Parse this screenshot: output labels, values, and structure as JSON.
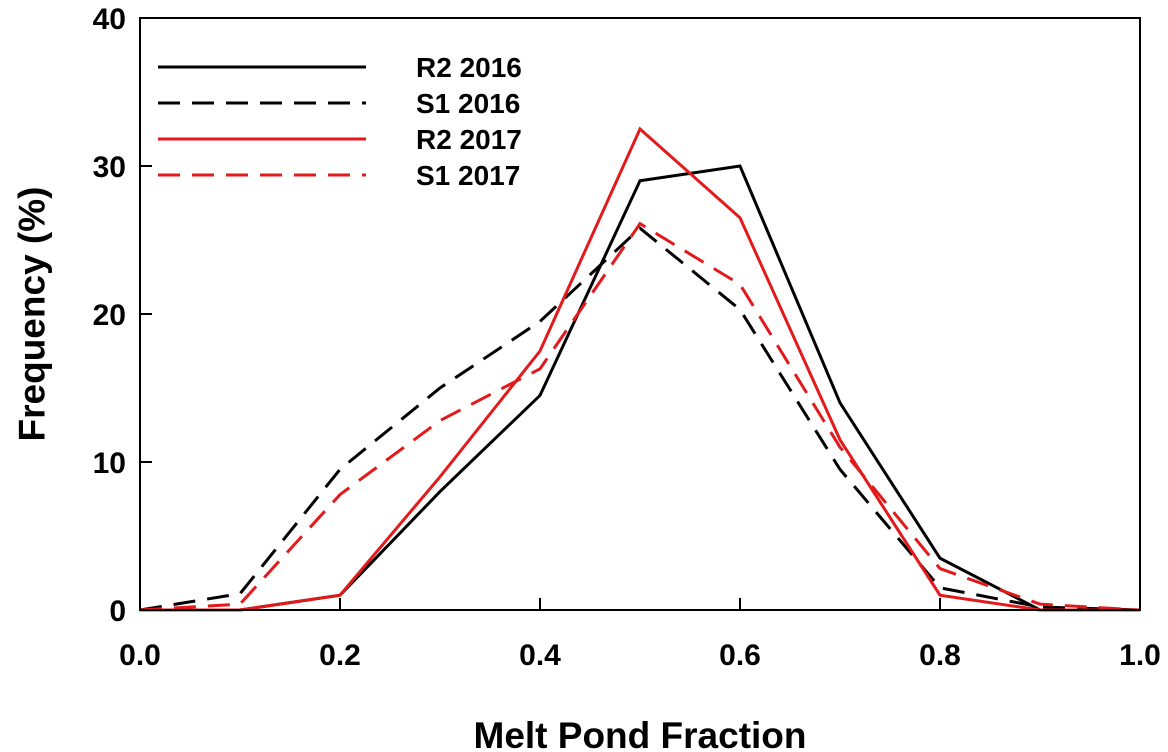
{
  "chart_data": {
    "type": "line",
    "xlabel": "Melt Pond Fraction",
    "ylabel": "Frequency (%)",
    "xlim": [
      0.0,
      1.0
    ],
    "ylim": [
      0,
      40
    ],
    "x_ticks": [
      "0.0",
      "0.2",
      "0.4",
      "0.6",
      "0.8",
      "1.0"
    ],
    "y_ticks": [
      "0",
      "10",
      "20",
      "30",
      "40"
    ],
    "grid": false,
    "legend_position": "top-left",
    "x": [
      0.0,
      0.1,
      0.2,
      0.3,
      0.4,
      0.5,
      0.6,
      0.7,
      0.8,
      0.9,
      1.0
    ],
    "series": [
      {
        "name": "R2 2016",
        "color": "#000000",
        "dash": "solid",
        "values": [
          0,
          0,
          1.0,
          8.0,
          14.5,
          29.0,
          30.0,
          14.0,
          3.5,
          0,
          0
        ]
      },
      {
        "name": "S1 2016",
        "color": "#000000",
        "dash": "dashed",
        "values": [
          0,
          1.1,
          9.5,
          15.0,
          19.5,
          25.8,
          20.3,
          9.5,
          1.5,
          0.2,
          0
        ]
      },
      {
        "name": "R2 2017",
        "color": "#e31a1c",
        "dash": "solid",
        "values": [
          0,
          0,
          1.0,
          9.0,
          17.5,
          32.5,
          26.5,
          11.5,
          1.0,
          0,
          0
        ]
      },
      {
        "name": "S1 2017",
        "color": "#e31a1c",
        "dash": "dashed",
        "values": [
          0,
          0.4,
          7.8,
          12.8,
          16.3,
          26.1,
          22.0,
          11.0,
          2.8,
          0.4,
          0
        ]
      }
    ]
  }
}
